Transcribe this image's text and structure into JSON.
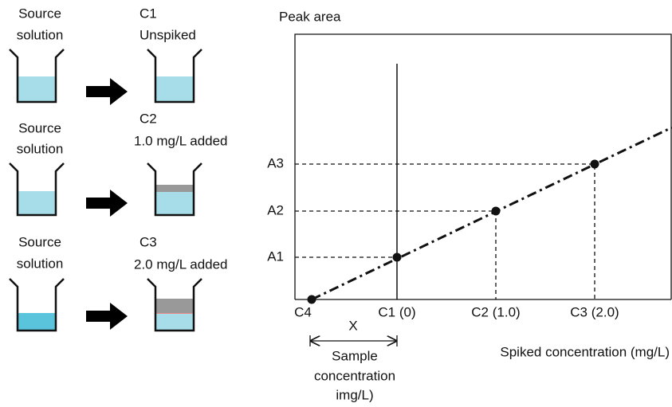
{
  "steps": [
    {
      "source": [
        "Source",
        "solution"
      ],
      "result": [
        "C1",
        "Unspiked"
      ]
    },
    {
      "source": [
        "Source",
        "solution"
      ],
      "result": [
        "C2",
        "1.0 mg/L added"
      ]
    },
    {
      "source": [
        "Source",
        "solution"
      ],
      "result": [
        "C3",
        "2.0 mg/L added"
      ]
    }
  ],
  "graph": {
    "y_axis_label": "Peak area",
    "y_labels": [
      "A1",
      "A2",
      "A3"
    ],
    "x_labels": [
      "C4",
      "C1 (0)",
      "C2 (1.0)",
      "C3 (2.0)"
    ],
    "x_axis_label": "Spiked concentration (mg/L)",
    "interval_label": "X",
    "interval_caption": [
      "Sample",
      "concentration",
      "img/L)"
    ]
  }
}
